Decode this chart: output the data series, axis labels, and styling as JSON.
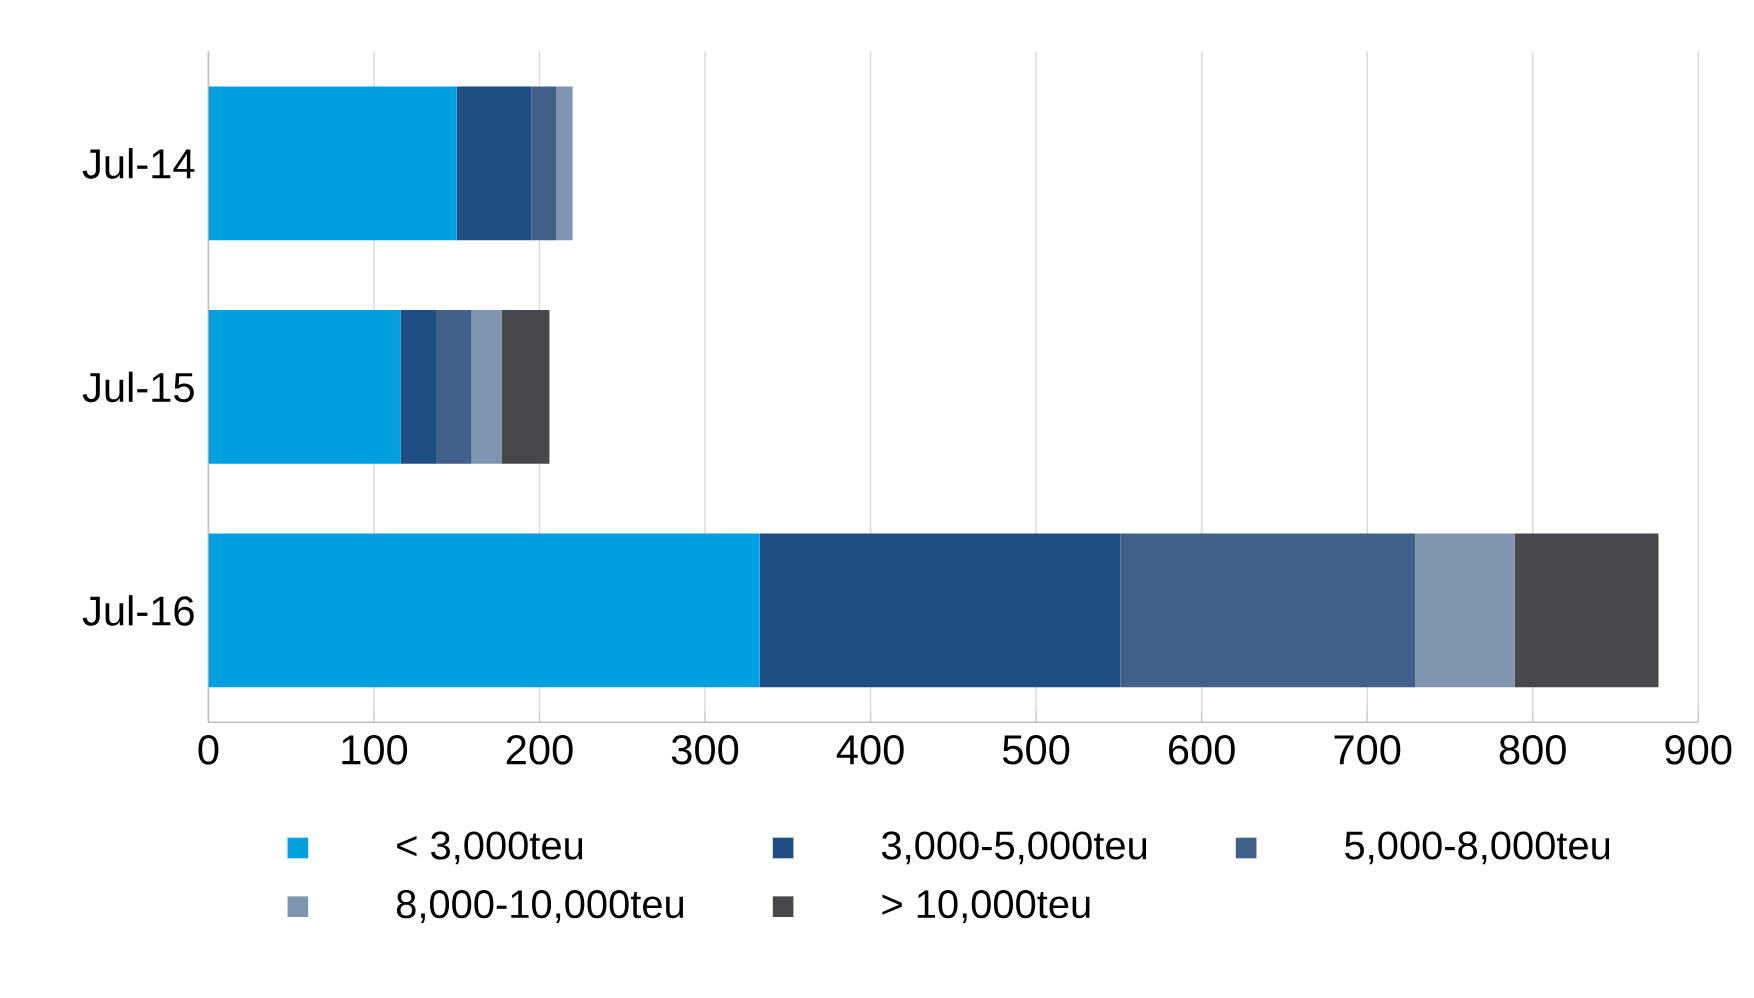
{
  "chart_data": {
    "type": "bar",
    "orientation": "horizontal",
    "stacked": true,
    "categories": [
      "Jul-14",
      "Jul-15",
      "Jul-16"
    ],
    "series": [
      {
        "name": "< 3,000teu",
        "color": "#00a0e0",
        "values": [
          150,
          116,
          333
        ]
      },
      {
        "name": "3,000-5,000teu",
        "color": "#1f4e85",
        "values": [
          45,
          22,
          218
        ]
      },
      {
        "name": "5,000-8,000teu",
        "color": "#41618a",
        "values": [
          15,
          21,
          178
        ]
      },
      {
        "name": "8,000-10,000teu",
        "color": "#8096b0",
        "values": [
          10,
          18,
          60
        ]
      },
      {
        "name": "> 10,000teu",
        "color": "#48484c",
        "values": [
          0,
          29,
          87
        ]
      }
    ],
    "xlim": [
      0,
      900
    ],
    "xticks": [
      0,
      100,
      200,
      300,
      400,
      500,
      600,
      700,
      800,
      900
    ],
    "grid": "x",
    "legend": "bottom"
  }
}
